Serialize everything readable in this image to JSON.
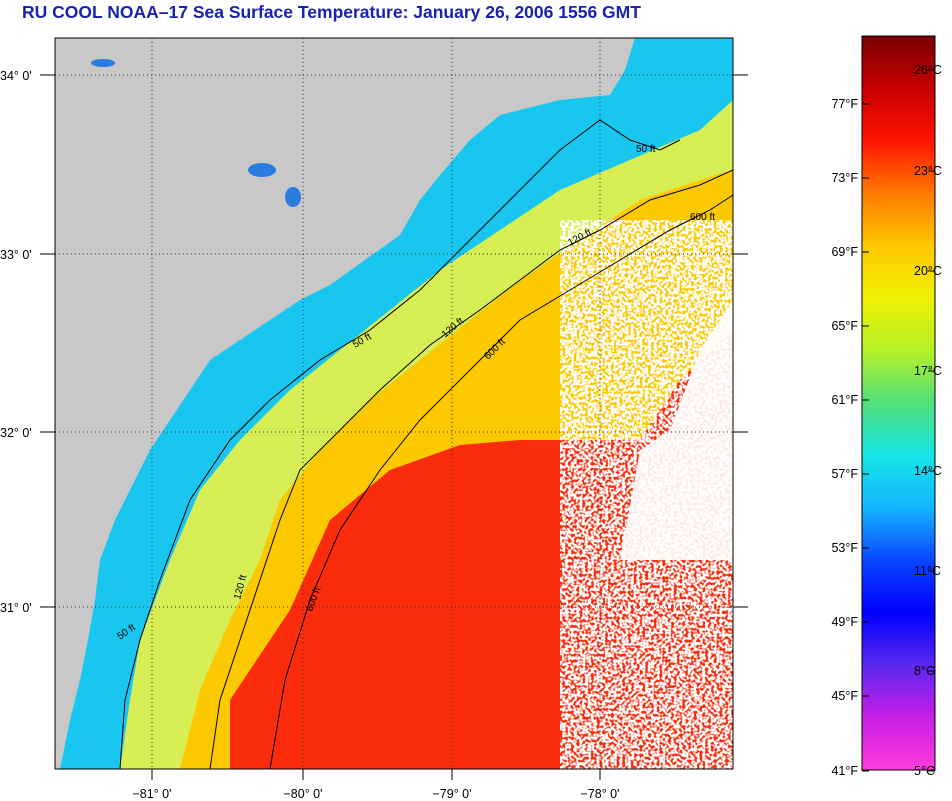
{
  "title": "RU COOL  NOAA–17  Sea Surface Temperature:  January 26, 2006 1556 GMT",
  "map": {
    "lat_labels": [
      "34° 0'",
      "33° 0'",
      "32° 0'",
      "31° 0'"
    ],
    "lon_labels": [
      "−81° 0'",
      "−80° 0'",
      "−79° 0'",
      "−78° 0'"
    ],
    "depth_labels": [
      "50 ft",
      "120 ft",
      "600 ft"
    ],
    "colors": {
      "land": "#c8c8c8",
      "cloud": "#ffffff",
      "inner_shelf": "#18c6f0",
      "mid_shelf": "#d6f05a",
      "outer_shelf": "#fcc800",
      "gulf_stream": "#fa2c0c",
      "contour": "#000000"
    }
  },
  "color_scale": {
    "fahrenheit_labels": [
      "77°F",
      "73°F",
      "69°F",
      "65°F",
      "61°F",
      "57°F",
      "53°F",
      "49°F",
      "45°F",
      "41°F"
    ],
    "celsius_labels": [
      "26°C",
      "23°C",
      "20°C",
      "17°C",
      "14°C",
      "11°C",
      "8°C",
      "5°C"
    ],
    "gradient": [
      "#7a0000",
      "#c80000",
      "#ff1400",
      "#ff7a00",
      "#ffc800",
      "#f0f000",
      "#b4f028",
      "#50e07a",
      "#14e6e6",
      "#14b4ff",
      "#0a46ff",
      "#0000ff",
      "#5a28f0",
      "#c81ee6",
      "#ff3cdc"
    ]
  }
}
